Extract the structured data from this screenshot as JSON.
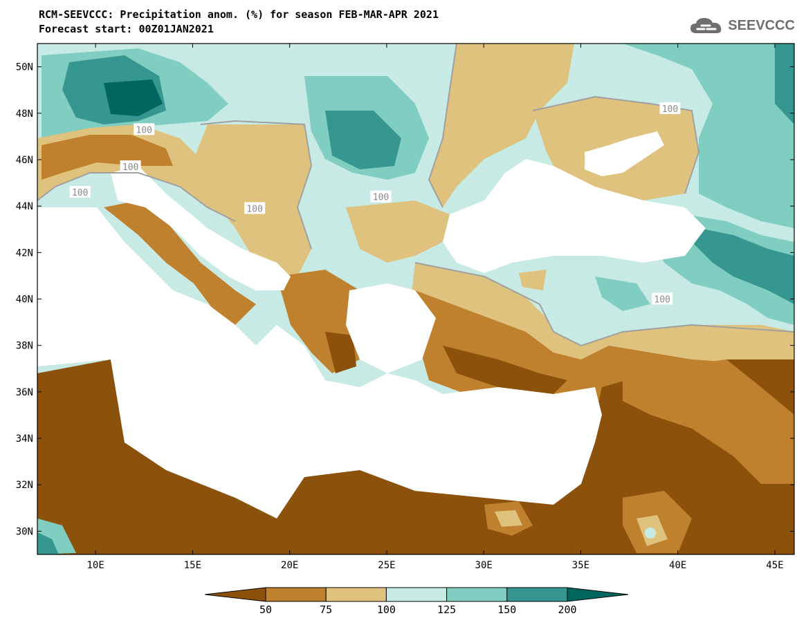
{
  "header": {
    "title_line1": "RCM-SEEVCCC: Precipitation anom. (%) for season FEB-MAR-APR 2021",
    "title_line2": "Forecast start: 00Z01JAN2021",
    "logo_text": "SEEVCCC"
  },
  "map": {
    "lon_range": [
      7,
      46
    ],
    "lat_range": [
      29,
      51
    ],
    "x_ticks": [
      "10E",
      "15E",
      "20E",
      "25E",
      "30E",
      "35E",
      "40E",
      "45E"
    ],
    "x_tick_values": [
      10,
      15,
      20,
      25,
      30,
      35,
      40,
      45
    ],
    "y_ticks": [
      "50N",
      "48N",
      "46N",
      "44N",
      "42N",
      "40N",
      "38N",
      "36N",
      "34N",
      "32N",
      "30N"
    ],
    "y_tick_values": [
      50,
      48,
      46,
      44,
      42,
      40,
      38,
      36,
      34,
      32,
      30
    ],
    "contour_labels": [
      {
        "text": "100",
        "lon": 12.5,
        "lat": 47.3
      },
      {
        "text": "100",
        "lon": 9.2,
        "lat": 44.6
      },
      {
        "text": "100",
        "lon": 11.8,
        "lat": 45.7
      },
      {
        "text": "100",
        "lon": 18.2,
        "lat": 43.9
      },
      {
        "text": "100",
        "lon": 24.7,
        "lat": 44.4
      },
      {
        "text": "100",
        "lon": 39.6,
        "lat": 48.2
      },
      {
        "text": "100",
        "lon": 39.2,
        "lat": 40.0
      }
    ]
  },
  "legend": {
    "labels": [
      "50",
      "75",
      "100",
      "125",
      "150",
      "200"
    ],
    "colors": [
      "#8c510a",
      "#bf812d",
      "#dfc27d",
      "#c7eae5",
      "#80cdc1",
      "#35978f",
      "#01665e"
    ]
  },
  "colors": {
    "very_dry": "#8c510a",
    "dry": "#bf812d",
    "slightly_dry": "#dfc27d",
    "slightly_wet": "#c7eae5",
    "wet": "#80cdc1",
    "very_wet": "#35978f",
    "extreme_wet": "#01665e",
    "sea": "#ffffff"
  }
}
